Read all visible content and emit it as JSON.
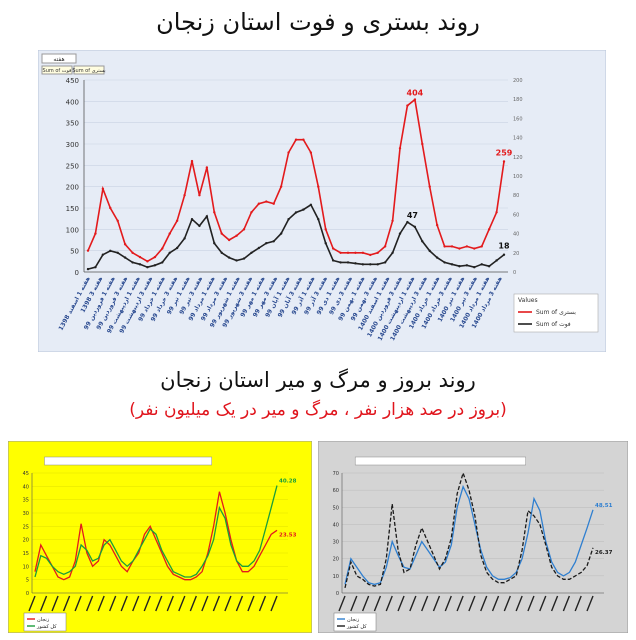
{
  "titles": {
    "top": "روند بستری و فوت استان زنجان",
    "bottom": "روند بروز و مرگ و میر استان زنجان",
    "bottom_sub": "(بروز در صد هزار نفر ، مرگ و میر در یک میلیون نفر)"
  },
  "colors": {
    "hosp": "#e31a1c",
    "death": "#222222",
    "panel1_bg": "#e6ecf6",
    "panel2_bg": "#ffff00",
    "panel3_bg": "#d4d4d4"
  },
  "chart_data": [
    {
      "type": "line",
      "ylim": [
        0,
        450
      ],
      "y2lim": [
        0,
        200
      ],
      "yticks": [
        "0",
        "50",
        "100",
        "150",
        "200",
        "250",
        "300",
        "350",
        "400",
        "450"
      ],
      "y2ticks": [
        "0",
        "20",
        "40",
        "60",
        "80",
        "100",
        "120",
        "140",
        "160",
        "180",
        "200"
      ],
      "x_labels": [
        "هفته 1 اسفند 1398",
        "هفته 3 1398",
        "هفته 1 فروردین 99",
        "هفته 3 فروردین 99",
        "هفته 1 اردیبهشت 99",
        "هفته 3 اردیبهشت 99",
        "هفته 1 خرداد 99",
        "هفته 3 خرداد 99",
        "هفته 1 تیر 99",
        "هفته 3 تیر 99",
        "هفته 1 مرداد 99",
        "هفته 3 مرداد 99",
        "هفته 1 شهریور 99",
        "هفته 3 شهریور 99",
        "هفته 1 مهر 99",
        "هفته 3 مهر 99",
        "هفته 1 آبان 99",
        "هفته 3 آبان 99",
        "هفته 1 آذر 99",
        "هفته 3 آذر 99",
        "هفته 1 دی 99",
        "هفته 3 دی 99",
        "هفته 1 بهمن 99",
        "هفته 3 بهمن 99",
        "هفته 1 اسفند 1400",
        "هفته 3 فروردین 1400",
        "هفته 1 اردیبهشت 1400",
        "هفته 3 اردیبهشت 1400",
        "هفته 1 خرداد 1400",
        "هفته 3 خرداد 1400",
        "هفته 1 تیر 1400",
        "هفته 3 تیر 1400",
        "هفته 1 مرداد 1400",
        "هفته 3 مرداد 1400"
      ],
      "filter_buttons": [
        "Sum of بستری",
        "Sum of فوت"
      ],
      "toolbar_label": "هفته",
      "legend": {
        "title": "Values",
        "items": [
          "Sum of بستری",
          "Sum of فوت"
        ]
      },
      "series": [
        {
          "name": "Sum of بستری",
          "axis": "left",
          "values": [
            50,
            90,
            195,
            150,
            120,
            65,
            45,
            35,
            25,
            35,
            55,
            90,
            120,
            180,
            260,
            180,
            245,
            140,
            90,
            75,
            85,
            100,
            140,
            160,
            165,
            160,
            200,
            280,
            310,
            310,
            280,
            200,
            100,
            55,
            45,
            45,
            45,
            45,
            40,
            45,
            60,
            120,
            290,
            390,
            404,
            300,
            200,
            110,
            60,
            60,
            55,
            60,
            55,
            60,
            100,
            140,
            259
          ]
        },
        {
          "name": "Sum of فوت",
          "axis": "right",
          "values": [
            3,
            5,
            18,
            22,
            20,
            15,
            10,
            8,
            5,
            7,
            10,
            20,
            25,
            35,
            55,
            48,
            58,
            30,
            20,
            15,
            12,
            14,
            20,
            25,
            30,
            32,
            40,
            55,
            62,
            65,
            70,
            55,
            30,
            12,
            10,
            10,
            9,
            8,
            8,
            8,
            10,
            20,
            40,
            52,
            47,
            32,
            22,
            15,
            10,
            8,
            6,
            7,
            5,
            8,
            6,
            12,
            18
          ]
        }
      ],
      "annotations": {
        "hosp_peak": "404",
        "death_peak": "47",
        "hosp_last": "259",
        "death_last": "18"
      }
    },
    {
      "type": "line",
      "ylim": [
        0,
        45
      ],
      "yticks": [
        "0",
        "5",
        "10",
        "15",
        "20",
        "25",
        "30",
        "35",
        "40",
        "45"
      ],
      "legend": [
        "زنجان",
        "کل کشور"
      ],
      "series": [
        {
          "name": "زنجان",
          "values": [
            8,
            18,
            14,
            10,
            6,
            5,
            6,
            12,
            26,
            15,
            10,
            12,
            20,
            18,
            14,
            10,
            8,
            12,
            15,
            22,
            25,
            20,
            15,
            10,
            7,
            6,
            5,
            5,
            6,
            8,
            15,
            25,
            38,
            30,
            20,
            12,
            8,
            8,
            10,
            14,
            18,
            22,
            23.53
          ]
        },
        {
          "name": "کل کشور",
          "values": [
            6,
            14,
            13,
            10,
            8,
            7,
            8,
            10,
            18,
            16,
            12,
            13,
            18,
            20,
            16,
            12,
            10,
            12,
            16,
            20,
            24,
            22,
            16,
            12,
            8,
            7,
            6,
            6,
            7,
            10,
            14,
            20,
            32,
            28,
            18,
            12,
            10,
            10,
            12,
            16,
            24,
            32,
            40.28
          ]
        }
      ],
      "annotations": {
        "end_a": "40.28",
        "end_b": "23.53"
      }
    },
    {
      "type": "line",
      "ylim": [
        0,
        70
      ],
      "yticks": [
        "0",
        "10",
        "20",
        "30",
        "40",
        "50",
        "60",
        "70"
      ],
      "legend": [
        "زنجان",
        "کل کشور"
      ],
      "series": [
        {
          "name": "کل کشور",
          "values": [
            5,
            20,
            15,
            10,
            6,
            5,
            6,
            15,
            30,
            22,
            15,
            14,
            22,
            30,
            25,
            20,
            15,
            18,
            28,
            50,
            62,
            55,
            40,
            25,
            15,
            10,
            8,
            8,
            9,
            12,
            20,
            35,
            55,
            48,
            30,
            18,
            12,
            10,
            12,
            18,
            28,
            38,
            48.51
          ]
        },
        {
          "name": "زنجان",
          "values": [
            3,
            18,
            10,
            8,
            5,
            4,
            5,
            20,
            52,
            25,
            12,
            14,
            28,
            38,
            30,
            22,
            14,
            20,
            32,
            58,
            70,
            60,
            45,
            22,
            12,
            8,
            6,
            6,
            8,
            10,
            25,
            48,
            45,
            40,
            28,
            15,
            10,
            8,
            8,
            10,
            12,
            16,
            26.37
          ]
        }
      ],
      "annotations": {
        "end_a": "48.51",
        "end_b": "26.37"
      }
    }
  ]
}
